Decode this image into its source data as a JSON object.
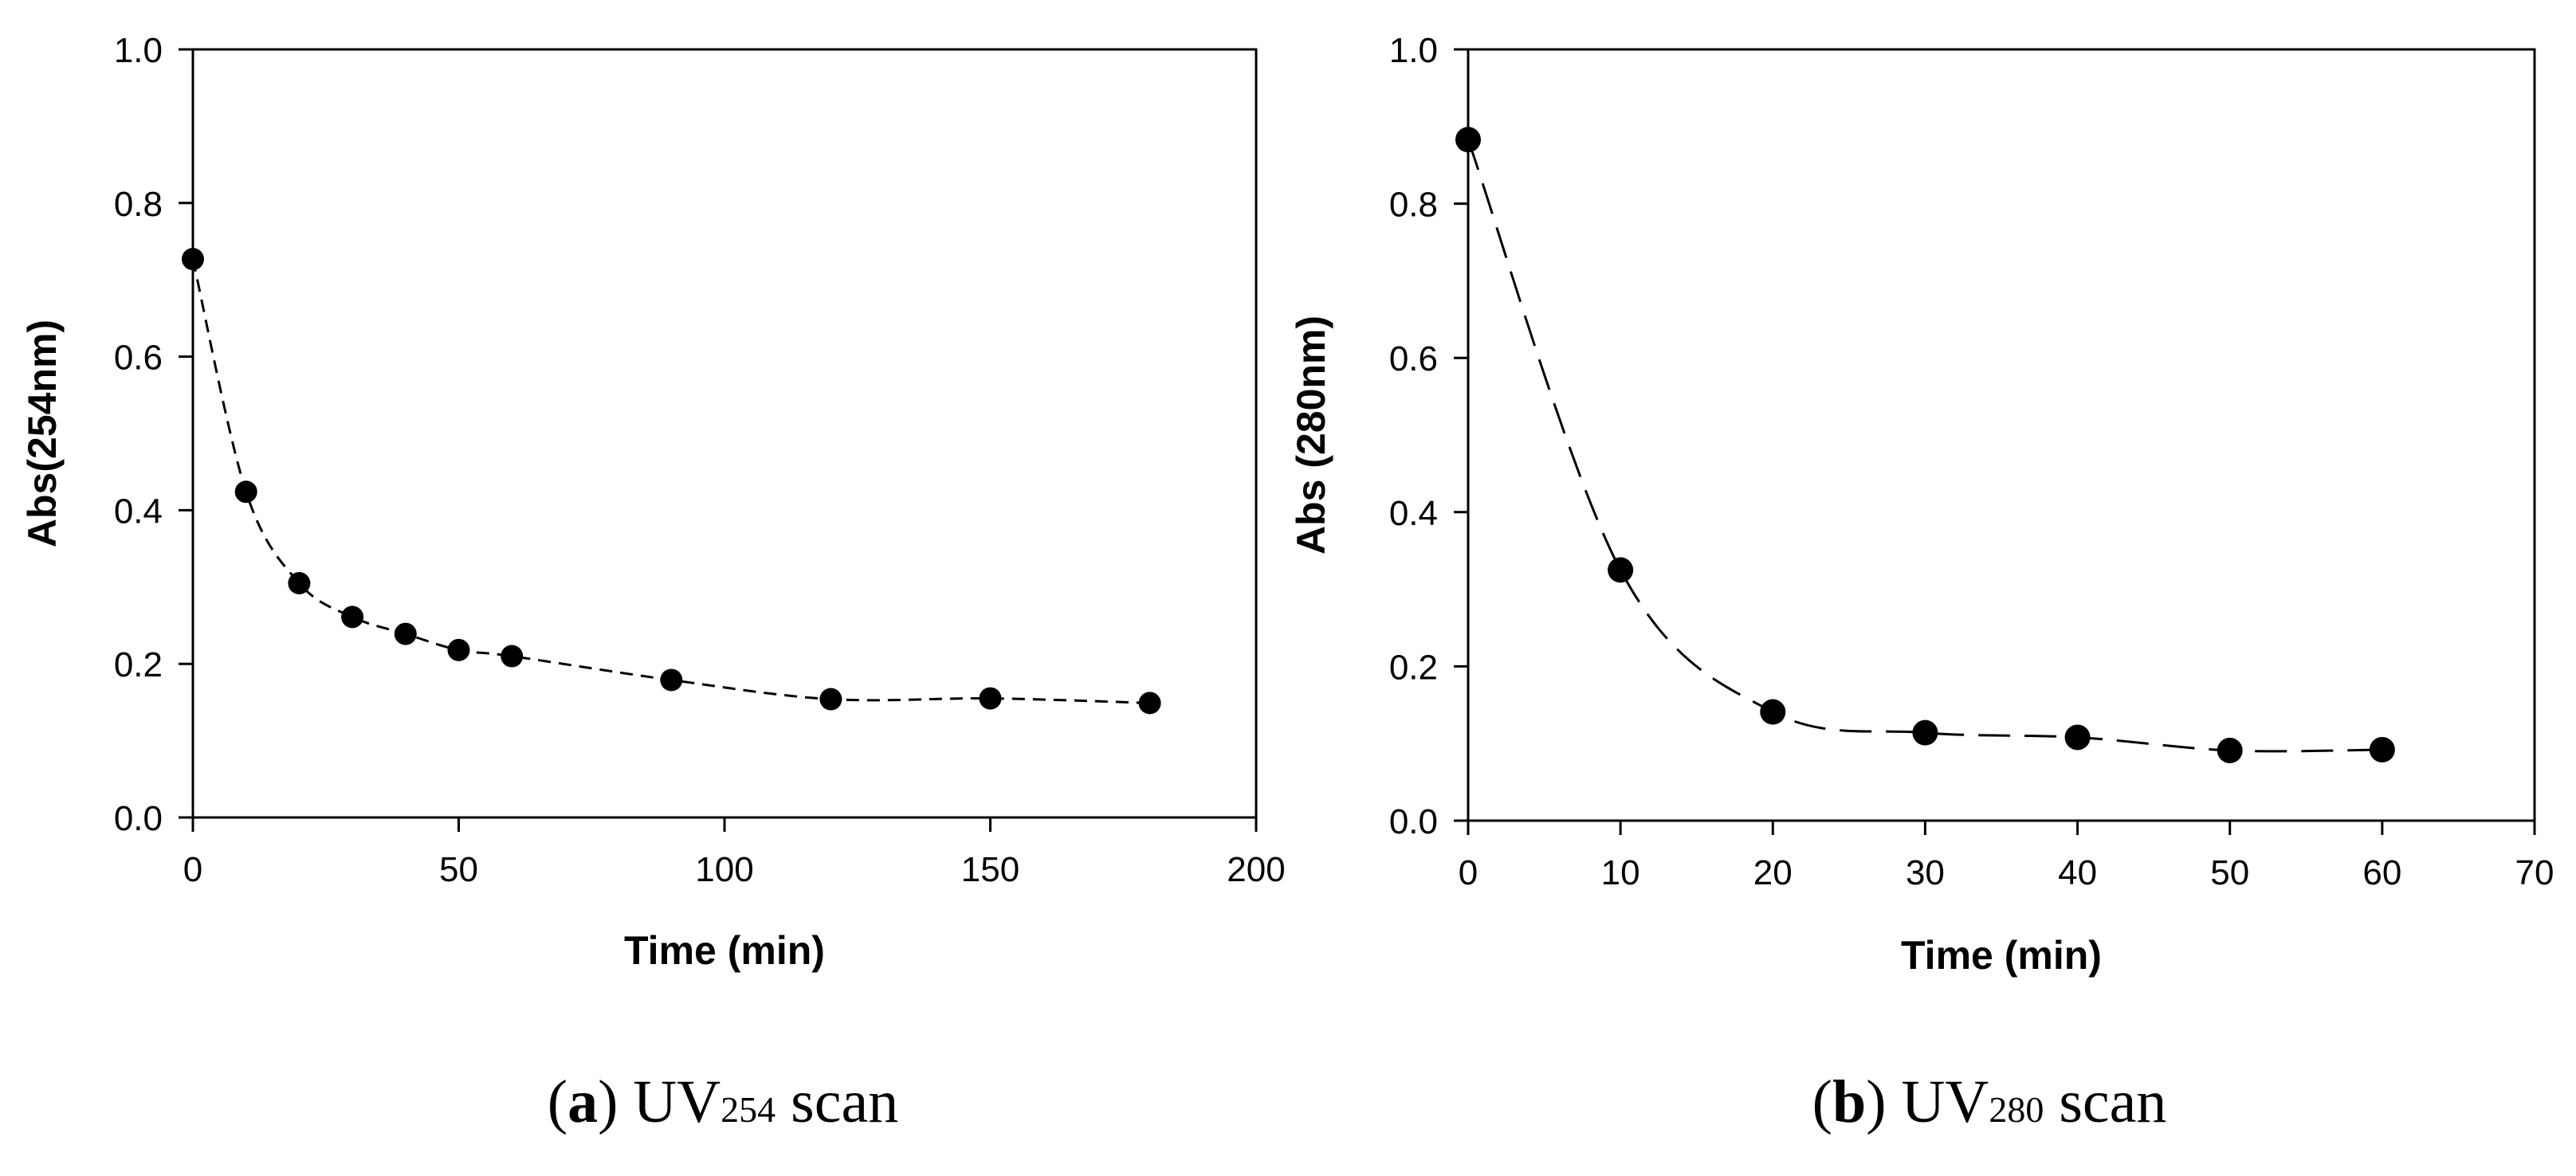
{
  "chart_data": [
    {
      "type": "line",
      "panel_label": "a",
      "caption_main": "UV",
      "caption_sub": "254",
      "caption_suffix": " scan",
      "xlabel": "Time (min)",
      "ylabel": "Abs(254nm)",
      "xlim": [
        0,
        200
      ],
      "ylim": [
        0.0,
        1.0
      ],
      "xticks": [
        "0",
        "50",
        "100",
        "150",
        "200"
      ],
      "yticks": [
        "0.0",
        "0.2",
        "0.4",
        "0.6",
        "0.8",
        "1.0"
      ],
      "line_style": "short-dash",
      "marker": "filled-circle",
      "series": [
        {
          "name": "Abs(254nm)",
          "x": [
            0,
            10,
            20,
            30,
            40,
            50,
            60,
            90,
            120,
            150,
            180
          ],
          "y": [
            0.727,
            0.424,
            0.305,
            0.261,
            0.239,
            0.218,
            0.21,
            0.179,
            0.154,
            0.155,
            0.149
          ]
        }
      ]
    },
    {
      "type": "line",
      "panel_label": "b",
      "caption_main": "UV",
      "caption_sub": "280",
      "caption_suffix": " scan",
      "xlabel": "Time (min)",
      "ylabel": "Abs (280nm)",
      "xlim": [
        0,
        70
      ],
      "ylim": [
        0.0,
        1.0
      ],
      "xticks": [
        "0",
        "10",
        "20",
        "30",
        "40",
        "50",
        "60",
        "70"
      ],
      "yticks": [
        "0.0",
        "0.2",
        "0.4",
        "0.6",
        "0.8",
        "1.0"
      ],
      "line_style": "long-dash",
      "marker": "filled-circle",
      "series": [
        {
          "name": "Abs (280nm)",
          "x": [
            0,
            10,
            20,
            30,
            40,
            50,
            60
          ],
          "y": [
            0.883,
            0.325,
            0.141,
            0.114,
            0.108,
            0.091,
            0.092
          ]
        }
      ]
    }
  ]
}
